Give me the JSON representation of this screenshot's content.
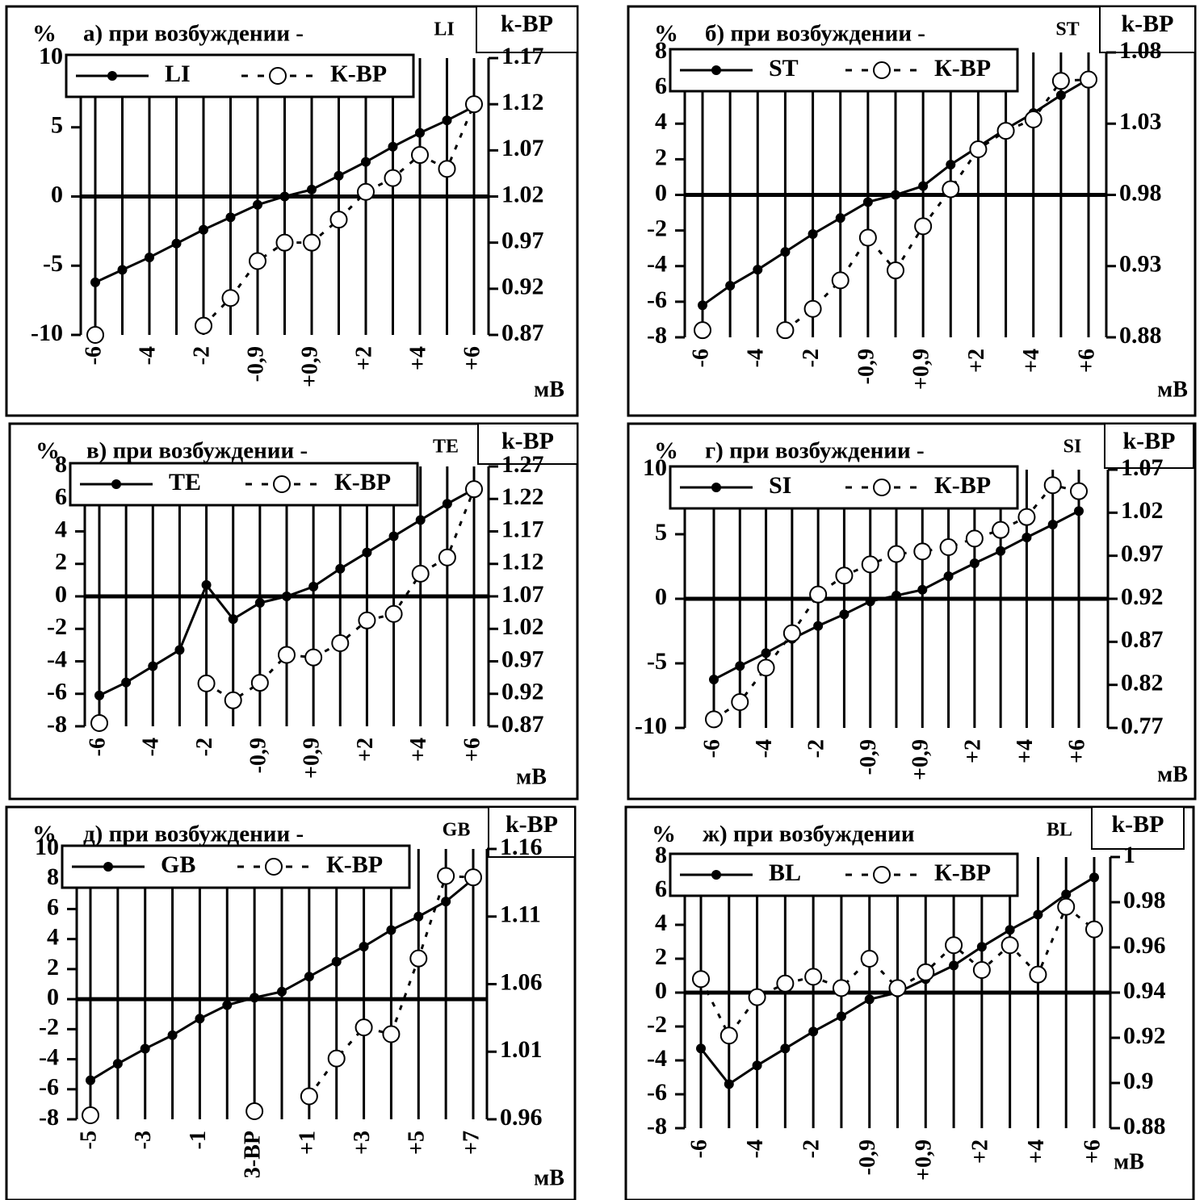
{
  "chart_data": [
    {
      "type": "line",
      "title": "а) при возбуждении -",
      "y_label": "%",
      "y2_label": "k-BP",
      "x_label": "мВ",
      "categories": [
        "-6",
        null,
        "-4",
        null,
        "-2",
        null,
        "-0,9",
        null,
        "+0,9",
        null,
        "+2",
        null,
        "+4",
        null,
        "+6"
      ],
      "series": [
        {
          "name": "LI",
          "color": "#000000",
          "line_style": "solid",
          "marker": "filled",
          "values": [
            -6.2,
            -5.3,
            -4.4,
            -3.4,
            -2.4,
            -1.5,
            -0.6,
            0,
            0.5,
            1.5,
            2.5,
            3.6,
            4.6,
            5.5,
            6.5
          ]
        },
        {
          "name": "К-ВР",
          "color": "#000000",
          "line_style": "dashed",
          "marker": "open",
          "axis": "y2",
          "values": [
            0.87,
            null,
            null,
            null,
            0.88,
            0.91,
            0.95,
            0.97,
            0.97,
            0.995,
            1.025,
            1.04,
            1.065,
            1.05,
            1.12
          ]
        }
      ],
      "ylim": [
        -10,
        10
      ],
      "yticks": [
        -10,
        -5,
        0,
        5,
        10
      ],
      "y2lim": [
        0.87,
        1.17
      ],
      "y2ticks": [
        0.87,
        0.92,
        0.97,
        1.02,
        1.07,
        1.12,
        1.17
      ],
      "grid": true,
      "legend": "upper left"
    },
    {
      "type": "line",
      "title": "б) при возбуждении -",
      "y_label": "%",
      "y2_label": "k-BP",
      "x_label": "мВ",
      "categories": [
        "-6",
        null,
        "-4",
        null,
        "-2",
        null,
        "-0,9",
        null,
        "+0,9",
        null,
        "+2",
        null,
        "+4",
        null,
        "+6"
      ],
      "series": [
        {
          "name": "ST",
          "color": "#000000",
          "line_style": "solid",
          "marker": "filled",
          "values": [
            -6.2,
            -5.1,
            -4.2,
            -3.2,
            -2.2,
            -1.3,
            -0.4,
            0,
            0.5,
            1.7,
            2.7,
            3.7,
            4.6,
            5.6,
            6.5
          ]
        },
        {
          "name": "К-ВР",
          "color": "#000000",
          "line_style": "dashed",
          "marker": "open",
          "axis": "y2",
          "values": [
            0.885,
            null,
            null,
            0.885,
            0.9,
            0.92,
            0.95,
            0.927,
            0.958,
            0.984,
            1.012,
            1.025,
            1.033,
            1.06,
            1.061
          ]
        }
      ],
      "ylim": [
        -8,
        8
      ],
      "yticks": [
        -8,
        -6,
        -4,
        -2,
        0,
        2,
        4,
        6,
        8
      ],
      "y2lim": [
        0.88,
        1.08
      ],
      "y2ticks": [
        0.88,
        0.93,
        0.98,
        1.03,
        1.08
      ],
      "grid": true,
      "legend": "upper left"
    },
    {
      "type": "line",
      "title": "в) при возбуждении -",
      "y_label": "%",
      "y2_label": "k-BP",
      "x_label": "мВ",
      "categories": [
        "-6",
        null,
        "-4",
        null,
        "-2",
        null,
        "-0,9",
        null,
        "+0,9",
        null,
        "+2",
        null,
        "+4",
        null,
        "+6"
      ],
      "series": [
        {
          "name": "TE",
          "color": "#000000",
          "line_style": "solid",
          "marker": "filled",
          "values": [
            -6.1,
            -5.3,
            -4.3,
            -3.3,
            0.7,
            -1.4,
            -0.4,
            0,
            0.6,
            1.7,
            2.7,
            3.7,
            4.7,
            5.7,
            6.6
          ]
        },
        {
          "name": "К-ВР",
          "color": "#000000",
          "line_style": "dashed",
          "marker": "open",
          "axis": "y2",
          "values": [
            0.875,
            null,
            null,
            null,
            0.936,
            0.91,
            0.937,
            0.98,
            0.976,
            0.998,
            1.033,
            1.043,
            1.105,
            1.13,
            1.235
          ]
        }
      ],
      "ylim": [
        -8,
        8
      ],
      "yticks": [
        -8,
        -6,
        -4,
        -2,
        0,
        2,
        4,
        6,
        8
      ],
      "y2lim": [
        0.87,
        1.27
      ],
      "y2ticks": [
        0.87,
        0.92,
        0.97,
        1.02,
        1.07,
        1.12,
        1.17,
        1.22,
        1.27
      ],
      "grid": true,
      "legend": "upper left"
    },
    {
      "type": "line",
      "title": "г) при возбуждении -",
      "y_label": "%",
      "y2_label": "k-BP",
      "x_label": "мВ",
      "categories": [
        "-6",
        null,
        "-4",
        null,
        "-2",
        null,
        "-0,9",
        null,
        "+0,9",
        null,
        "+2",
        null,
        "+4",
        null,
        "+6"
      ],
      "series": [
        {
          "name": "SI",
          "color": "#000000",
          "line_style": "solid",
          "marker": "filled",
          "values": [
            -6.25,
            -5.2,
            -4.2,
            -3.1,
            -2.1,
            -1.2,
            -0.2,
            0.25,
            0.7,
            1.75,
            2.75,
            3.7,
            4.75,
            5.75,
            6.8
          ]
        },
        {
          "name": "К-ВР",
          "color": "#000000",
          "line_style": "dashed",
          "marker": "open",
          "axis": "y2",
          "values": [
            0.78,
            0.8,
            0.84,
            0.88,
            0.925,
            0.947,
            0.96,
            0.972,
            0.975,
            0.98,
            0.99,
            1.0,
            1.015,
            1.052,
            1.045
          ]
        }
      ],
      "ylim": [
        -10,
        10
      ],
      "yticks": [
        -10,
        -5,
        0,
        5,
        10
      ],
      "y2lim": [
        0.77,
        1.07
      ],
      "y2ticks": [
        0.77,
        0.82,
        0.87,
        0.92,
        0.97,
        1.02,
        1.07
      ],
      "grid": true,
      "legend": "upper left"
    },
    {
      "type": "line",
      "title": "д) при возбуждении -",
      "y_label": "%",
      "y2_label": "k-BP",
      "x_label": "мВ",
      "categories": [
        "-5",
        null,
        "-3",
        null,
        "-1",
        null,
        "3-ВР",
        null,
        "+1",
        null,
        "+3",
        null,
        "+5",
        null,
        "+7"
      ],
      "series": [
        {
          "name": "GB",
          "color": "#000000",
          "line_style": "solid",
          "marker": "filled",
          "values": [
            -5.4,
            -4.3,
            -3.3,
            -2.4,
            -1.3,
            -0.4,
            0.1,
            0.5,
            1.5,
            2.5,
            3.5,
            4.6,
            5.5,
            6.5,
            8
          ]
        },
        {
          "name": "К-ВР",
          "color": "#000000",
          "line_style": "dashed",
          "marker": "open",
          "axis": "y2",
          "values": [
            0.963,
            null,
            null,
            null,
            null,
            null,
            0.966,
            null,
            0.977,
            1.005,
            1.028,
            1.023,
            1.079,
            1.14,
            1.139
          ]
        }
      ],
      "ylim": [
        -8,
        10
      ],
      "yticks": [
        -8,
        -6,
        -4,
        -2,
        0,
        2,
        4,
        6,
        8,
        10
      ],
      "y2lim": [
        0.96,
        1.16
      ],
      "y2ticks": [
        0.96,
        1.01,
        1.06,
        1.11,
        1.16
      ],
      "grid": true,
      "legend": "upper left"
    },
    {
      "type": "line",
      "title": "ж) при возбуждении",
      "y_label": "%",
      "y2_label": "k-BP",
      "x_label": "мВ",
      "categories": [
        "-6",
        null,
        "-4",
        null,
        "-2",
        null,
        "-0,9",
        null,
        "+0,9",
        null,
        "+2",
        null,
        "+4",
        null,
        "+6"
      ],
      "series": [
        {
          "name": "BL",
          "color": "#000000",
          "line_style": "solid",
          "marker": "filled",
          "values": [
            -3.3,
            -5.4,
            -4.3,
            -3.3,
            -2.3,
            -1.4,
            -0.4,
            0,
            0.8,
            1.6,
            2.7,
            3.7,
            4.6,
            5.8,
            6.8
          ]
        },
        {
          "name": "К-ВР",
          "color": "#000000",
          "line_style": "dashed",
          "marker": "open",
          "axis": "y2",
          "values": [
            0.946,
            0.921,
            0.938,
            0.944,
            0.947,
            0.942,
            0.955,
            0.942,
            0.949,
            0.961,
            0.95,
            0.961,
            0.948,
            0.978,
            0.968
          ]
        }
      ],
      "ylim": [
        -8,
        8
      ],
      "yticks": [
        -8,
        -6,
        -4,
        -2,
        0,
        2,
        4,
        6,
        8
      ],
      "y2lim": [
        0.88,
        1
      ],
      "y2ticks": [
        0.88,
        0.9,
        0.92,
        0.94,
        0.96,
        0.98,
        1
      ],
      "grid": true,
      "legend": "upper left"
    }
  ]
}
